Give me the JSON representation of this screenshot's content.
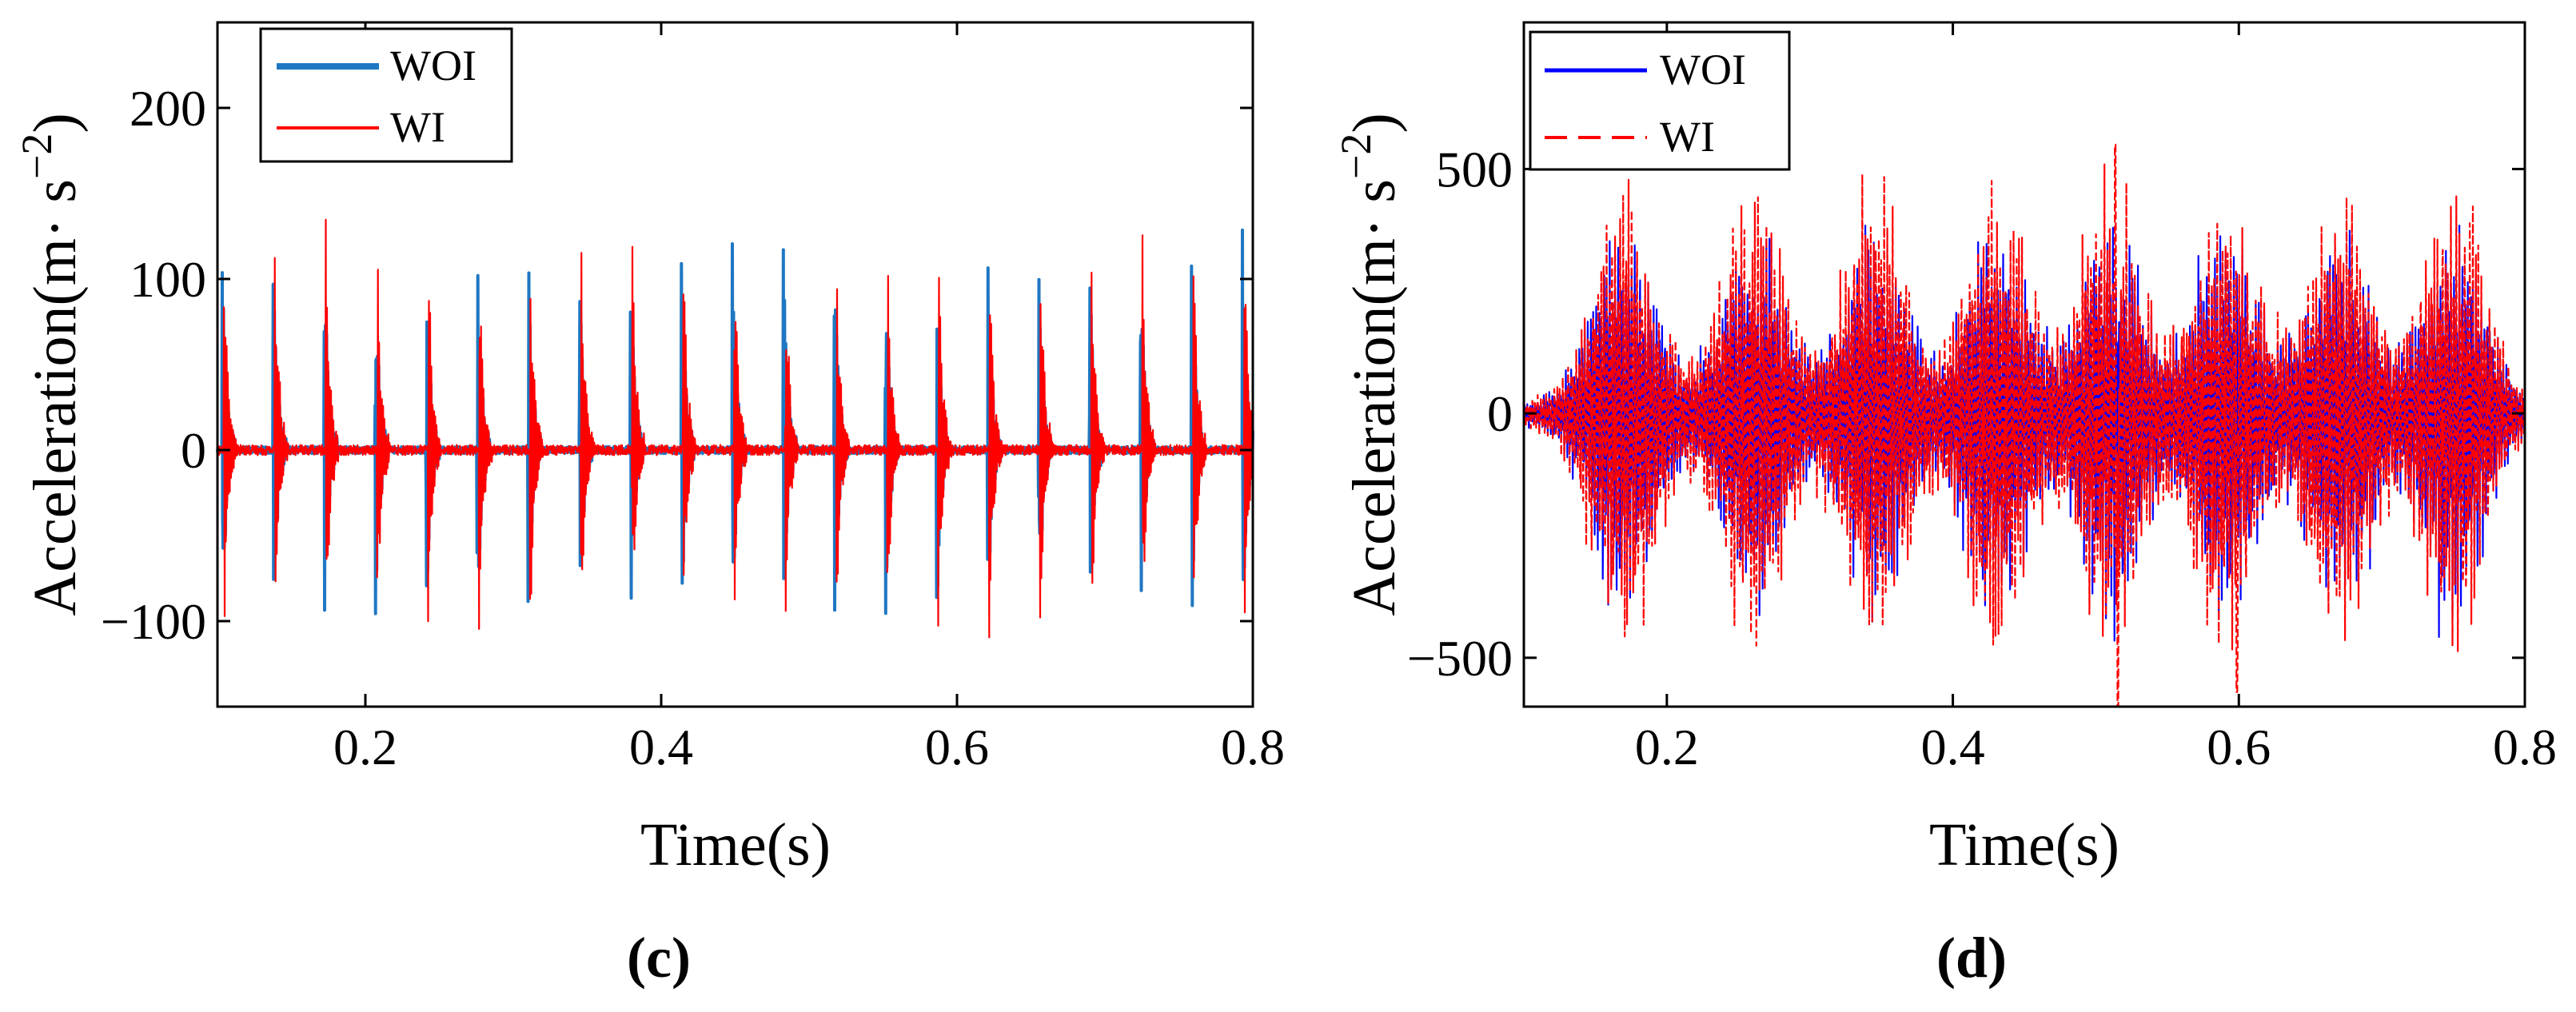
{
  "chart_data": [
    {
      "type": "line",
      "panel_label": "(c)",
      "xlabel": "Time(s)",
      "ylabel_base": "Acceleration(m· s",
      "ylabel_exp": "−2",
      "ylabel_close": ")",
      "xlim": [
        0.1,
        0.8
      ],
      "ylim": [
        -150,
        250
      ],
      "xticks": [
        0.2,
        0.4,
        0.6,
        0.8
      ],
      "xtick_labels": [
        "0.2",
        "0.4",
        "0.6",
        "0.8"
      ],
      "yticks": [
        -100,
        0,
        100,
        200
      ],
      "ytick_labels": [
        "−100",
        "0",
        "100",
        "200"
      ],
      "grid": false,
      "legend_position": "top-left",
      "burst_period_s": 0.0345,
      "burst_first_s": 0.103,
      "series": [
        {
          "name": "WOI",
          "color": "#1f77c2",
          "style": "solid",
          "peak_pos": 133,
          "peak_neg": -120,
          "baseline_noise": 2
        },
        {
          "name": "WI",
          "color": "#ff0000",
          "style": "solid",
          "peak_pos": 140,
          "peak_neg": -120,
          "baseline_noise": 3
        }
      ]
    },
    {
      "type": "line",
      "panel_label": "(d)",
      "xlabel": "Time(s)",
      "ylabel_base": "Acceleration(m· s",
      "ylabel_exp": "−2",
      "ylabel_close": ")",
      "xlim": [
        0.1,
        0.8
      ],
      "ylim": [
        -600,
        800
      ],
      "xticks": [
        0.2,
        0.4,
        0.6,
        0.8
      ],
      "xtick_labels": [
        "0.2",
        "0.4",
        "0.6",
        "0.8"
      ],
      "yticks": [
        -500,
        0,
        500
      ],
      "ytick_labels": [
        "−500",
        "0",
        "500"
      ],
      "grid": false,
      "legend_position": "top-left",
      "burst_centers_s": [
        0.17,
        0.26,
        0.345,
        0.43,
        0.51,
        0.59,
        0.67,
        0.75
      ],
      "series": [
        {
          "name": "WOI",
          "color": "#0000ff",
          "style": "solid",
          "peak_pos": 460,
          "peak_neg": -510
        },
        {
          "name": "WI",
          "color": "#ff0000",
          "style": "dashed",
          "peak_pos": 550,
          "peak_neg": -600
        }
      ]
    }
  ]
}
